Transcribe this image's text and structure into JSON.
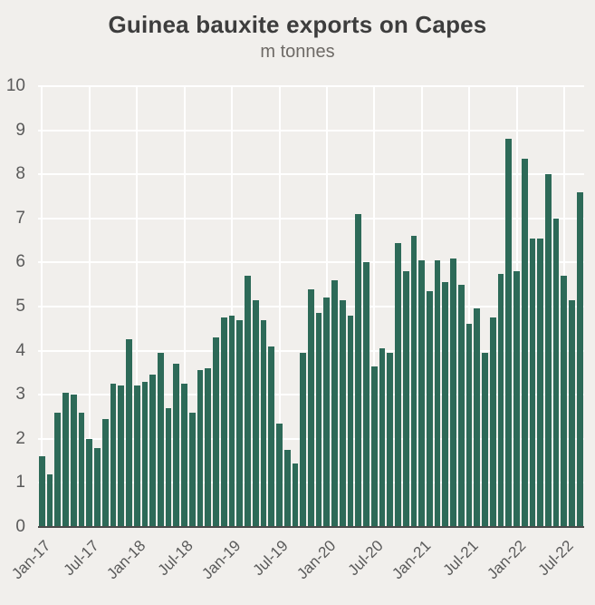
{
  "chart_data": {
    "type": "bar",
    "title": "Guinea bauxite exports on Capes",
    "subtitle": "m tonnes",
    "ylabel": "m tonnes",
    "xlabel": "",
    "ylim": [
      0,
      10
    ],
    "yticks": [
      0,
      1,
      2,
      3,
      4,
      5,
      6,
      7,
      8,
      9,
      10
    ],
    "grid": true,
    "legend": false,
    "bar_color": "#2d6a58",
    "background_color": "#f1efec",
    "xtick_every": 6,
    "xtick_labels": [
      "Jan-17",
      "Jul-17",
      "Jan-18",
      "Jul-18",
      "Jan-19",
      "Jul-19",
      "Jan-20",
      "Jul-20",
      "Jan-21",
      "Jul-21",
      "Jan-22",
      "Jul-22"
    ],
    "categories": [
      "Jan-17",
      "Feb-17",
      "Mar-17",
      "Apr-17",
      "May-17",
      "Jun-17",
      "Jul-17",
      "Aug-17",
      "Sep-17",
      "Oct-17",
      "Nov-17",
      "Dec-17",
      "Jan-18",
      "Feb-18",
      "Mar-18",
      "Apr-18",
      "May-18",
      "Jun-18",
      "Jul-18",
      "Aug-18",
      "Sep-18",
      "Oct-18",
      "Nov-18",
      "Dec-18",
      "Jan-19",
      "Feb-19",
      "Mar-19",
      "Apr-19",
      "May-19",
      "Jun-19",
      "Jul-19",
      "Aug-19",
      "Sep-19",
      "Oct-19",
      "Nov-19",
      "Dec-19",
      "Jan-20",
      "Feb-20",
      "Mar-20",
      "Apr-20",
      "May-20",
      "Jun-20",
      "Jul-20",
      "Aug-20",
      "Sep-20",
      "Oct-20",
      "Nov-20",
      "Dec-20",
      "Jan-21",
      "Feb-21",
      "Mar-21",
      "Apr-21",
      "May-21",
      "Jun-21",
      "Jul-21",
      "Aug-21",
      "Sep-21",
      "Oct-21",
      "Nov-21",
      "Dec-21",
      "Jan-22",
      "Feb-22",
      "Mar-22",
      "Apr-22",
      "May-22",
      "Jun-22",
      "Jul-22",
      "Aug-22",
      "Sep-22"
    ],
    "values": [
      1.6,
      1.2,
      2.6,
      3.05,
      3.0,
      2.6,
      2.0,
      1.8,
      2.45,
      3.25,
      3.2,
      4.25,
      3.2,
      3.3,
      3.45,
      3.95,
      2.7,
      3.7,
      3.25,
      2.6,
      3.55,
      3.6,
      4.3,
      4.75,
      4.8,
      4.7,
      5.7,
      5.15,
      4.7,
      4.1,
      2.35,
      1.75,
      1.45,
      3.95,
      5.4,
      4.85,
      5.2,
      5.6,
      5.15,
      4.8,
      7.1,
      6.0,
      3.65,
      4.05,
      3.95,
      6.45,
      5.8,
      6.6,
      6.05,
      5.35,
      6.05,
      5.55,
      6.1,
      5.5,
      4.6,
      4.95,
      3.95,
      4.75,
      5.75,
      8.8,
      5.8,
      8.35,
      6.55,
      6.55,
      8.0,
      7.0,
      5.7,
      5.15,
      7.6
    ]
  }
}
